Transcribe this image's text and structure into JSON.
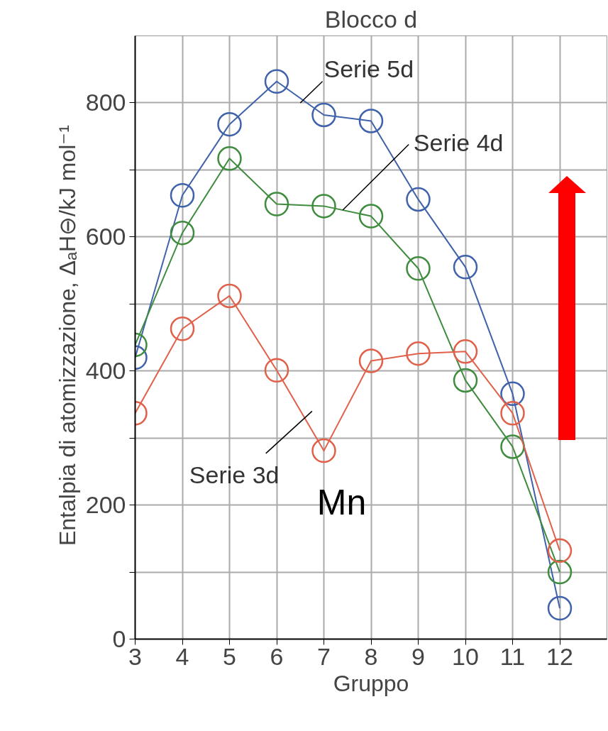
{
  "chart_data": {
    "type": "line",
    "title": "Blocco d",
    "xlabel": "Gruppo",
    "ylabel": "Entalpia di atomizzazione, ΔₐH⊖/kJ mol⁻¹",
    "x": [
      3,
      4,
      5,
      6,
      7,
      8,
      9,
      10,
      11,
      12
    ],
    "series": [
      {
        "name": "Serie 5d",
        "color": "#3f62aa",
        "values": [
          420,
          662,
          768,
          832,
          782,
          773,
          656,
          555,
          366,
          46
        ]
      },
      {
        "name": "Serie 4d",
        "color": "#3f8c3f",
        "values": [
          439,
          606,
          717,
          649,
          646,
          631,
          553,
          386,
          287,
          100
        ]
      },
      {
        "name": "Serie 3d",
        "color": "#e0604a",
        "values": [
          337,
          463,
          512,
          401,
          281,
          415,
          426,
          429,
          337,
          132
        ]
      }
    ],
    "annotations": [
      {
        "text": "Mn",
        "x": 7,
        "y": 281
      }
    ],
    "xlim": [
      3,
      13
    ],
    "ylim": [
      0,
      900
    ],
    "xticks": [
      3,
      4,
      5,
      6,
      7,
      8,
      9,
      10,
      11,
      12
    ],
    "yticks": [
      0,
      {
        "value": 100,
        "label": null
      },
      200,
      {
        "value": 300,
        "label": null
      },
      400,
      {
        "value": 500,
        "label": null
      },
      600,
      {
        "value": 700,
        "label": null
      },
      800
    ],
    "grid": true,
    "marker": "circle",
    "line_style": "solid"
  }
}
